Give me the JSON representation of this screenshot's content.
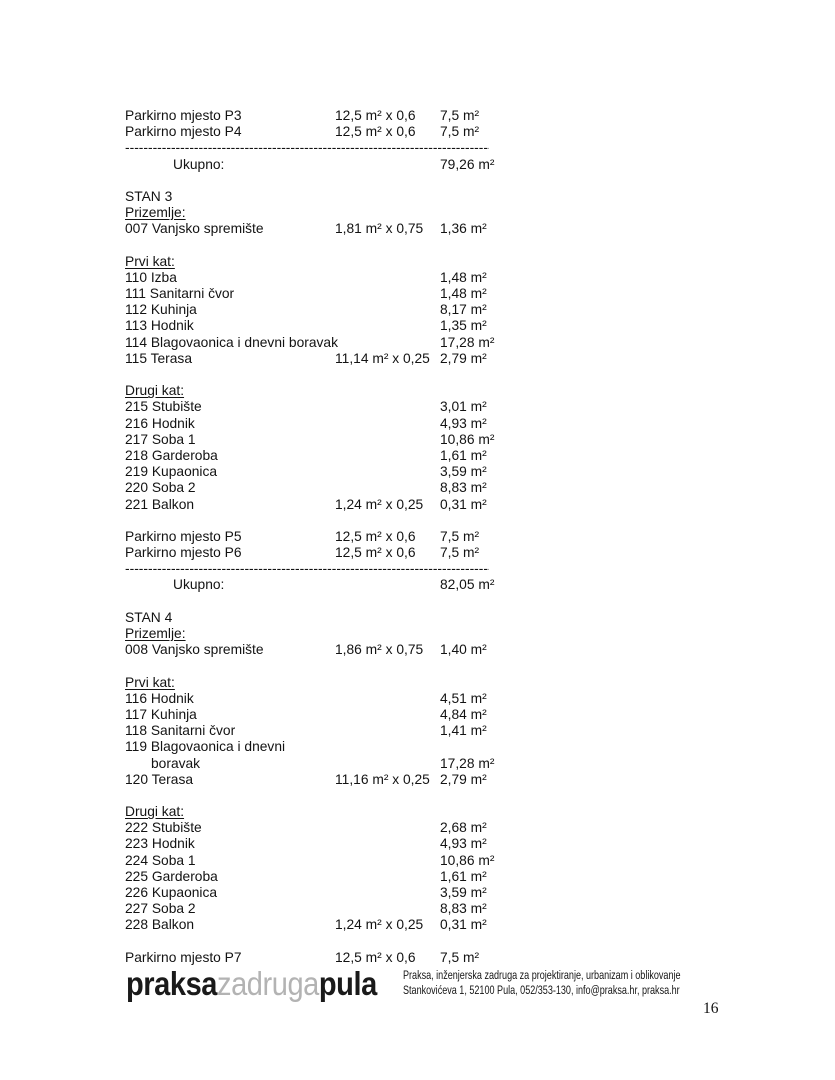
{
  "document": {
    "divider_dashes": "----------------------------------------------------------------------------------",
    "rows": [
      {
        "t": "item",
        "label": "Parkirno mjesto P3",
        "dims": "12,5 m² x 0,6",
        "area": "7,5 m²"
      },
      {
        "t": "item",
        "label": "Parkirno mjesto P4",
        "dims": "12,5 m² x 0,6",
        "area": "7,5 m²"
      },
      {
        "t": "divider"
      },
      {
        "t": "total",
        "label": "Ukupno:",
        "area": "79,26 m²"
      },
      {
        "t": "gap"
      },
      {
        "t": "title",
        "label": "STAN 3"
      },
      {
        "t": "heading",
        "label": "Prizemlje:"
      },
      {
        "t": "item",
        "label": "007 Vanjsko spremište",
        "dims": "1,81 m² x 0,75",
        "area": "1,36 m²"
      },
      {
        "t": "gap"
      },
      {
        "t": "heading",
        "label": "Prvi kat:"
      },
      {
        "t": "item",
        "label": "110 Izba",
        "area": "1,48 m²"
      },
      {
        "t": "item",
        "label": "111 Sanitarni čvor",
        "area": "1,48 m²"
      },
      {
        "t": "item",
        "label": "112 Kuhinja",
        "area": "8,17 m²"
      },
      {
        "t": "item",
        "label": "113 Hodnik",
        "area": "1,35 m²"
      },
      {
        "t": "item",
        "label": "114 Blagovaonica i dnevni boravak",
        "area": "17,28 m²"
      },
      {
        "t": "item",
        "label": "115 Terasa",
        "dims": "11,14 m² x 0,25",
        "area": "2,79 m²"
      },
      {
        "t": "gap"
      },
      {
        "t": "heading",
        "label": "Drugi kat:"
      },
      {
        "t": "item",
        "label": "215 Stubište",
        "area": "3,01 m²"
      },
      {
        "t": "item",
        "label": "216 Hodnik",
        "area": "4,93 m²"
      },
      {
        "t": "item",
        "label": "217 Soba 1",
        "area": "10,86 m²"
      },
      {
        "t": "item",
        "label": "218 Garderoba",
        "area": "1,61 m²"
      },
      {
        "t": "item",
        "label": "219 Kupaonica",
        "area": "3,59 m²"
      },
      {
        "t": "item",
        "label": "220 Soba 2",
        "area": "8,83 m²"
      },
      {
        "t": "item",
        "label": "221 Balkon",
        "dims": "1,24 m² x 0,25",
        "area": "0,31 m²"
      },
      {
        "t": "gap"
      },
      {
        "t": "item",
        "label": "Parkirno mjesto P5",
        "dims": "12,5 m² x 0,6",
        "area": "7,5 m²"
      },
      {
        "t": "item",
        "label": "Parkirno mjesto P6",
        "dims": "12,5 m² x 0,6",
        "area": "7,5 m²"
      },
      {
        "t": "divider"
      },
      {
        "t": "total",
        "label": "Ukupno:",
        "area": "82,05 m²"
      },
      {
        "t": "gap"
      },
      {
        "t": "title",
        "label": "STAN 4"
      },
      {
        "t": "heading",
        "label": "Prizemlje:"
      },
      {
        "t": "item",
        "label": "008 Vanjsko spremište",
        "dims": "1,86 m² x 0,75",
        "area": "1,40 m²"
      },
      {
        "t": "gap"
      },
      {
        "t": "heading",
        "label": "Prvi kat:"
      },
      {
        "t": "item",
        "label": "116 Hodnik",
        "area": "4,51 m²"
      },
      {
        "t": "item",
        "label": "117 Kuhinja",
        "area": "4,84 m²"
      },
      {
        "t": "item",
        "label": "118 Sanitarni čvor",
        "area": "1,41 m²"
      },
      {
        "t": "item",
        "label": "119 Blagovaonica i dnevni"
      },
      {
        "t": "item",
        "label": "boravak",
        "area": "17,28 m²",
        "indent": true
      },
      {
        "t": "item",
        "label": "120 Terasa",
        "dims": "11,16 m² x 0,25",
        "area": "2,79 m²"
      },
      {
        "t": "gap"
      },
      {
        "t": "heading",
        "label": "Drugi kat:"
      },
      {
        "t": "item",
        "label": "222 Stubište",
        "area": "2,68 m²"
      },
      {
        "t": "item",
        "label": "223 Hodnik",
        "area": "4,93 m²"
      },
      {
        "t": "item",
        "label": "224 Soba 1",
        "area": "10,86 m²"
      },
      {
        "t": "item",
        "label": "225 Garderoba",
        "area": "1,61 m²"
      },
      {
        "t": "item",
        "label": "226 Kupaonica",
        "area": "3,59 m²"
      },
      {
        "t": "item",
        "label": "227 Soba 2",
        "area": "8,83 m²"
      },
      {
        "t": "item",
        "label": "228 Balkon",
        "dims": "1,24 m² x 0,25",
        "area": "0,31 m²"
      },
      {
        "t": "gap"
      },
      {
        "t": "item",
        "label": "Parkirno mjesto P7",
        "dims": "12,5 m² x 0,6",
        "area": "7,5 m²"
      }
    ]
  },
  "footer": {
    "logo_praksa": "praksa",
    "logo_zadruga": "zadruga",
    "logo_pula": "pula",
    "org_line1": "Praksa, inženjerska zadruga za projektiranje, urbanizam i oblikovanje",
    "org_line2": "Stankovićeva 1, 52100 Pula, 052/353-130, info@praksa.hr, praksa.hr"
  },
  "page_number": "16"
}
